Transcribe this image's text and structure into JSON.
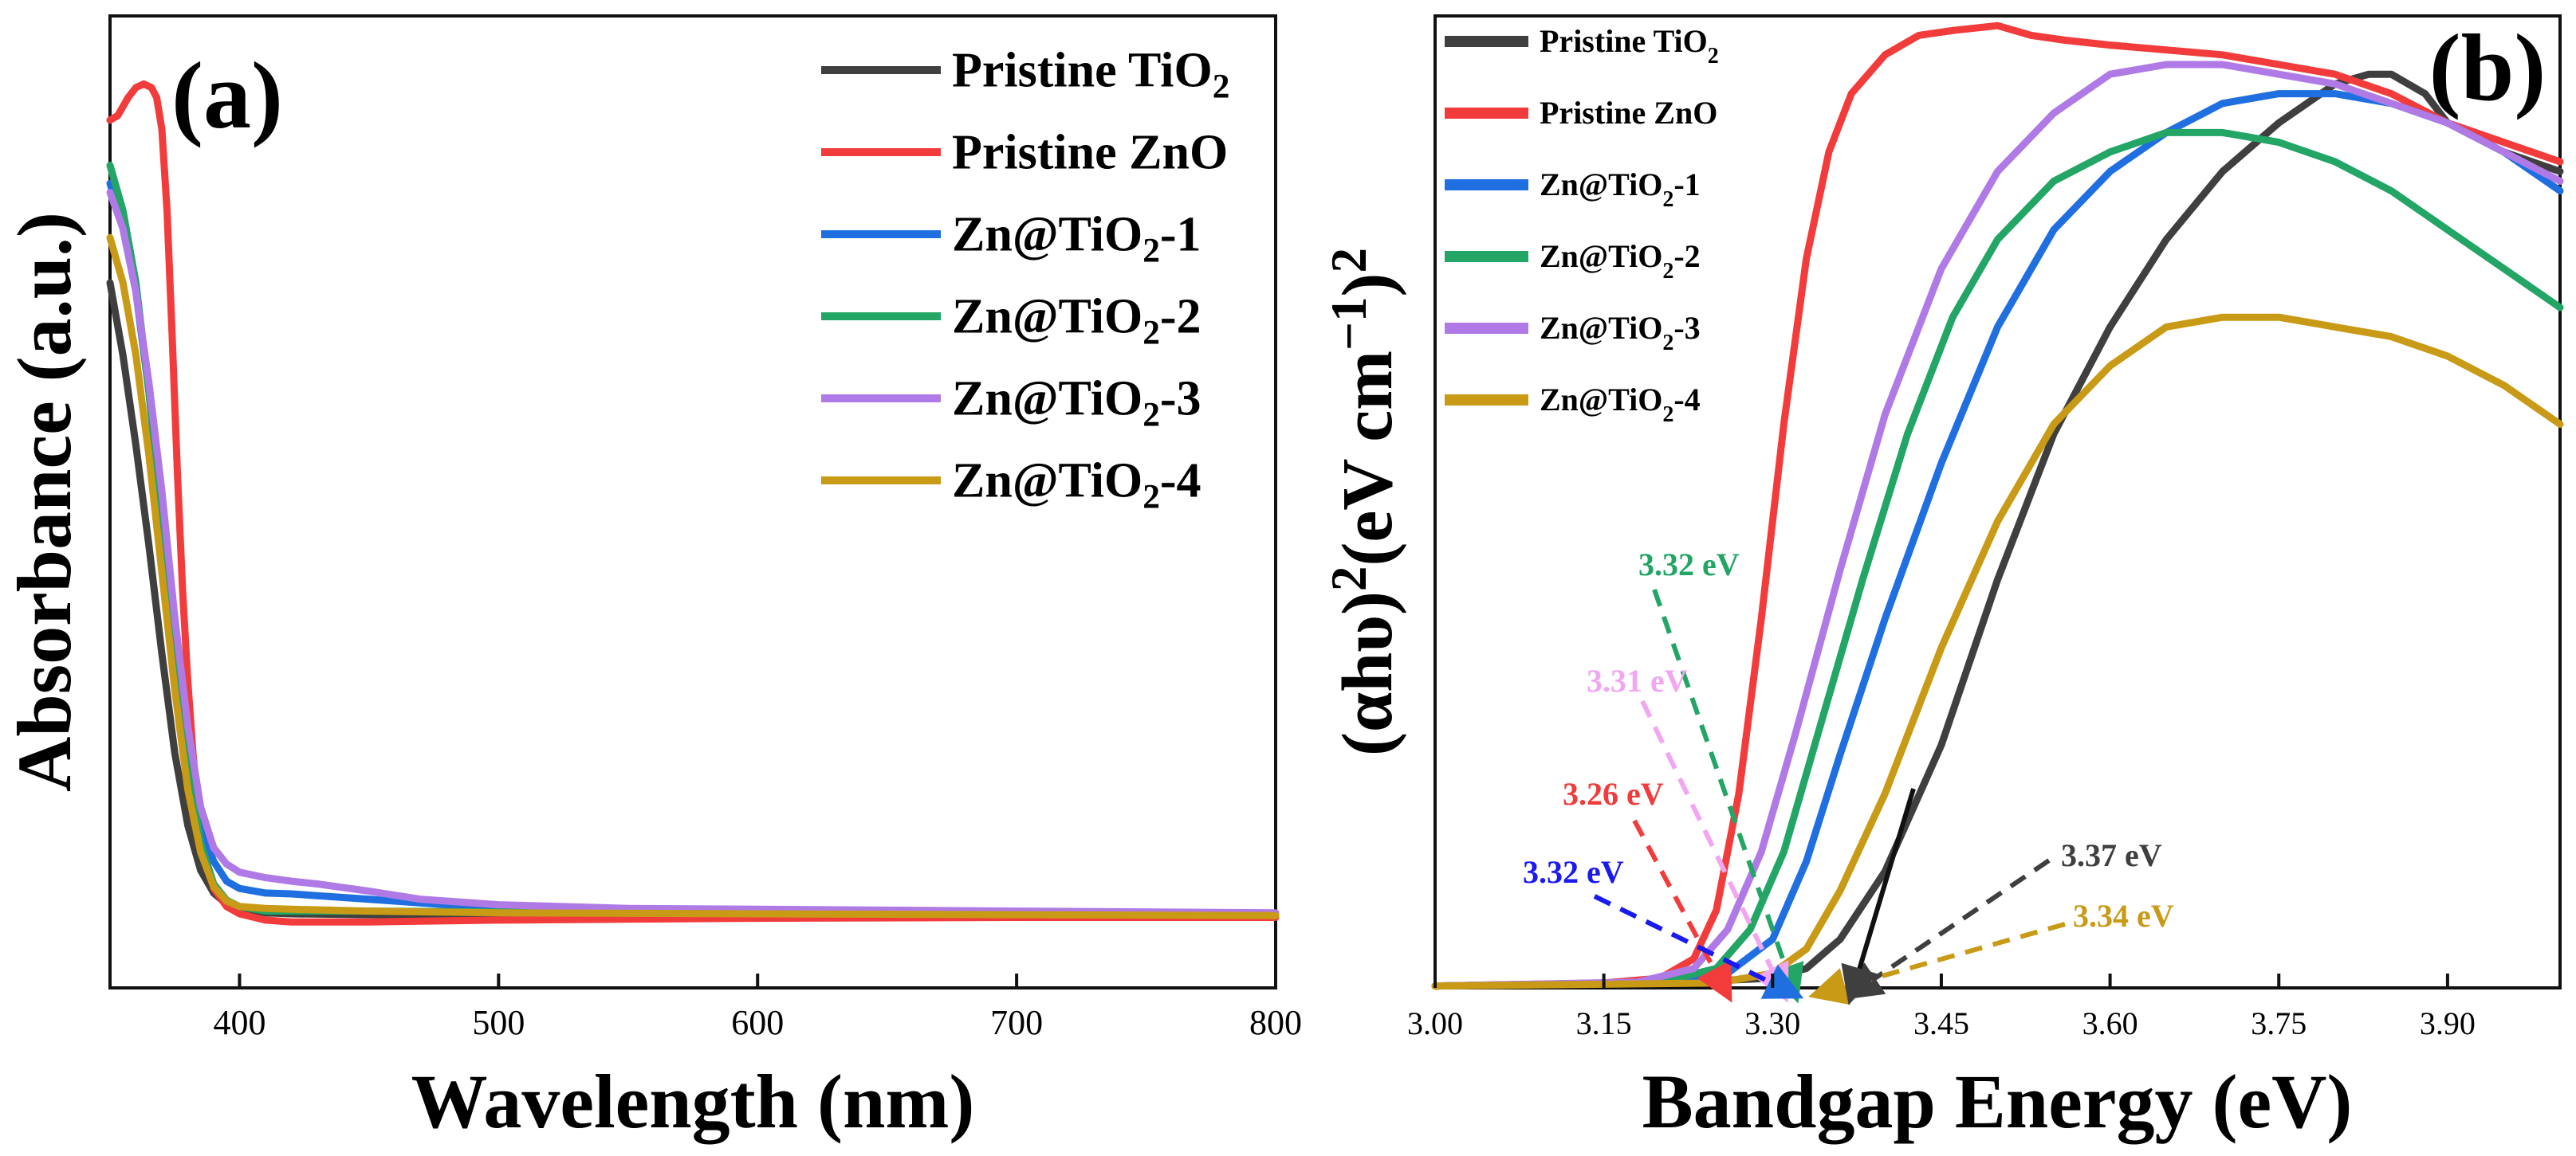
{
  "colors": {
    "pristine_tio2": "#3f3f3f",
    "pristine_zno": "#f23c3c",
    "zn_tio2_1": "#1f6fe0",
    "zn_tio2_2": "#22a565",
    "zn_tio2_3": "#b07ae6",
    "zn_tio2_4": "#c99a16"
  },
  "chart_data": [
    {
      "type": "line",
      "panel": "(a)",
      "title": "",
      "xlabel": "Wavelength (nm)",
      "ylabel": "Absorbance (a.u.)",
      "xlim": [
        350,
        800
      ],
      "ylim": [
        0,
        1.0
      ],
      "xticks": [
        400,
        500,
        600,
        700,
        800
      ],
      "grid": false,
      "legend_position": "top-right",
      "series": [
        {
          "key": "pristine_tio2",
          "name": "Pristine TiO",
          "sub": "2",
          "suffix": "",
          "x": [
            350,
            355,
            360,
            365,
            370,
            375,
            380,
            385,
            390,
            395,
            400,
            410,
            420,
            450,
            500,
            600,
            700,
            800
          ],
          "y": [
            0.78,
            0.7,
            0.6,
            0.49,
            0.37,
            0.26,
            0.18,
            0.13,
            0.105,
            0.093,
            0.088,
            0.083,
            0.082,
            0.081,
            0.081,
            0.081,
            0.081,
            0.08
          ]
        },
        {
          "key": "pristine_zno",
          "name": "Pristine ZnO",
          "sub": "",
          "suffix": "",
          "x": [
            350,
            353,
            357,
            360,
            363,
            366,
            368,
            370,
            372,
            374,
            376,
            378,
            380,
            382,
            384,
            386,
            388,
            390,
            395,
            400,
            410,
            420,
            450,
            500,
            600,
            700,
            800
          ],
          "y": [
            0.96,
            0.965,
            0.985,
            0.996,
            1.0,
            0.996,
            0.985,
            0.95,
            0.86,
            0.72,
            0.57,
            0.44,
            0.34,
            0.26,
            0.2,
            0.16,
            0.13,
            0.11,
            0.09,
            0.082,
            0.075,
            0.073,
            0.073,
            0.075,
            0.077,
            0.078,
            0.078
          ]
        },
        {
          "key": "zn_tio2_1",
          "name": "Zn@TiO",
          "sub": "2",
          "suffix": "-1",
          "x": [
            350,
            355,
            360,
            365,
            370,
            375,
            380,
            385,
            390,
            395,
            400,
            410,
            420,
            450,
            500,
            550,
            600,
            700,
            800
          ],
          "y": [
            0.89,
            0.84,
            0.77,
            0.66,
            0.52,
            0.38,
            0.26,
            0.18,
            0.14,
            0.118,
            0.11,
            0.105,
            0.104,
            0.098,
            0.088,
            0.085,
            0.084,
            0.082,
            0.081
          ]
        },
        {
          "key": "zn_tio2_2",
          "name": "Zn@TiO",
          "sub": "2",
          "suffix": "-2",
          "x": [
            350,
            355,
            360,
            365,
            370,
            375,
            380,
            385,
            390,
            395,
            400,
            410,
            420,
            450,
            500,
            600,
            700,
            800
          ],
          "y": [
            0.91,
            0.86,
            0.78,
            0.66,
            0.52,
            0.37,
            0.25,
            0.16,
            0.115,
            0.097,
            0.09,
            0.085,
            0.085,
            0.085,
            0.084,
            0.083,
            0.082,
            0.081
          ]
        },
        {
          "key": "zn_tio2_3",
          "name": "Zn@TiO",
          "sub": "2",
          "suffix": "-3",
          "x": [
            350,
            355,
            360,
            365,
            370,
            375,
            380,
            385,
            390,
            395,
            400,
            410,
            420,
            430,
            450,
            470,
            500,
            550,
            600,
            700,
            800
          ],
          "y": [
            0.88,
            0.84,
            0.77,
            0.67,
            0.55,
            0.41,
            0.29,
            0.2,
            0.155,
            0.137,
            0.128,
            0.122,
            0.118,
            0.115,
            0.107,
            0.098,
            0.092,
            0.088,
            0.087,
            0.085,
            0.083
          ]
        },
        {
          "key": "zn_tio2_4",
          "name": "Zn@TiO",
          "sub": "2",
          "suffix": "-4",
          "x": [
            350,
            355,
            360,
            365,
            370,
            375,
            380,
            385,
            390,
            395,
            400,
            410,
            420,
            450,
            500,
            600,
            700,
            800
          ],
          "y": [
            0.83,
            0.78,
            0.7,
            0.59,
            0.46,
            0.33,
            0.22,
            0.15,
            0.112,
            0.096,
            0.09,
            0.088,
            0.087,
            0.085,
            0.083,
            0.082,
            0.081,
            0.08
          ]
        }
      ]
    },
    {
      "type": "line",
      "panel": "(b)",
      "title": "",
      "xlabel": "Bandgap Energy (eV)",
      "ylabel_parts": [
        "(αhυ)",
        "2",
        "(eV cm",
        "−1",
        ")",
        "2"
      ],
      "xlim": [
        3.0,
        4.0
      ],
      "ylim": [
        0,
        1.0
      ],
      "xticks": [
        3.0,
        3.15,
        3.3,
        3.45,
        3.6,
        3.75,
        3.9
      ],
      "grid": false,
      "legend_position": "top-left",
      "series": [
        {
          "key": "pristine_tio2",
          "name": "Pristine TiO",
          "sub": "2",
          "suffix": "",
          "x": [
            3.0,
            3.2,
            3.3,
            3.33,
            3.36,
            3.4,
            3.45,
            3.5,
            3.55,
            3.6,
            3.65,
            3.7,
            3.75,
            3.8,
            3.83,
            3.85,
            3.88,
            3.9,
            3.95,
            4.0
          ],
          "y": [
            0.002,
            0.005,
            0.01,
            0.02,
            0.05,
            0.12,
            0.25,
            0.42,
            0.57,
            0.68,
            0.77,
            0.84,
            0.89,
            0.93,
            0.94,
            0.94,
            0.92,
            0.89,
            0.86,
            0.84
          ]
        },
        {
          "key": "pristine_zno",
          "name": "Pristine ZnO",
          "sub": "",
          "suffix": "",
          "x": [
            3.0,
            3.15,
            3.2,
            3.23,
            3.25,
            3.27,
            3.29,
            3.31,
            3.33,
            3.35,
            3.37,
            3.4,
            3.43,
            3.46,
            3.5,
            3.53,
            3.56,
            3.6,
            3.65,
            3.7,
            3.75,
            3.8,
            3.85,
            3.9,
            3.95,
            4.0
          ],
          "y": [
            0.002,
            0.005,
            0.01,
            0.03,
            0.08,
            0.2,
            0.38,
            0.58,
            0.75,
            0.86,
            0.92,
            0.96,
            0.98,
            0.985,
            0.99,
            0.98,
            0.975,
            0.97,
            0.965,
            0.96,
            0.95,
            0.94,
            0.92,
            0.89,
            0.87,
            0.85
          ]
        },
        {
          "key": "zn_tio2_1",
          "name": "Zn@TiO",
          "sub": "2",
          "suffix": "-1",
          "x": [
            3.0,
            3.2,
            3.26,
            3.3,
            3.33,
            3.36,
            3.4,
            3.45,
            3.5,
            3.55,
            3.6,
            3.65,
            3.7,
            3.75,
            3.8,
            3.85,
            3.9,
            3.95,
            4.0
          ],
          "y": [
            0.002,
            0.005,
            0.015,
            0.05,
            0.13,
            0.24,
            0.38,
            0.54,
            0.68,
            0.78,
            0.84,
            0.88,
            0.91,
            0.92,
            0.92,
            0.91,
            0.89,
            0.86,
            0.82
          ]
        },
        {
          "key": "zn_tio2_2",
          "name": "Zn@TiO",
          "sub": "2",
          "suffix": "-2",
          "x": [
            3.0,
            3.2,
            3.25,
            3.28,
            3.31,
            3.34,
            3.38,
            3.42,
            3.46,
            3.5,
            3.55,
            3.6,
            3.65,
            3.7,
            3.75,
            3.8,
            3.85,
            3.9,
            3.95,
            4.0
          ],
          "y": [
            0.002,
            0.006,
            0.02,
            0.06,
            0.14,
            0.26,
            0.42,
            0.57,
            0.69,
            0.77,
            0.83,
            0.86,
            0.88,
            0.88,
            0.87,
            0.85,
            0.82,
            0.78,
            0.74,
            0.7
          ]
        },
        {
          "key": "zn_tio2_3",
          "name": "Zn@TiO",
          "sub": "2",
          "suffix": "-3",
          "x": [
            3.0,
            3.18,
            3.23,
            3.26,
            3.29,
            3.32,
            3.36,
            3.4,
            3.45,
            3.5,
            3.55,
            3.6,
            3.65,
            3.7,
            3.75,
            3.8,
            3.85,
            3.9,
            3.95,
            4.0
          ],
          "y": [
            0.002,
            0.006,
            0.02,
            0.06,
            0.14,
            0.26,
            0.43,
            0.59,
            0.74,
            0.84,
            0.9,
            0.94,
            0.95,
            0.95,
            0.94,
            0.93,
            0.91,
            0.89,
            0.86,
            0.83
          ]
        },
        {
          "key": "zn_tio2_4",
          "name": "Zn@TiO",
          "sub": "2",
          "suffix": "-4",
          "x": [
            3.0,
            3.25,
            3.3,
            3.33,
            3.36,
            3.4,
            3.45,
            3.5,
            3.55,
            3.6,
            3.65,
            3.7,
            3.75,
            3.8,
            3.85,
            3.9,
            3.95,
            4.0
          ],
          "y": [
            0.002,
            0.005,
            0.015,
            0.04,
            0.1,
            0.2,
            0.35,
            0.48,
            0.58,
            0.64,
            0.68,
            0.69,
            0.69,
            0.68,
            0.67,
            0.65,
            0.62,
            0.58
          ]
        }
      ],
      "annotations": [
        {
          "label": "3.32 eV",
          "key": "zn_tio2_2",
          "target_x": 3.32
        },
        {
          "label": "3.31 eV",
          "key": "zn_tio2_3",
          "target_x": 3.31
        },
        {
          "label": "3.26 eV",
          "key": "pristine_zno",
          "target_x": 3.26
        },
        {
          "label": "3.32 eV",
          "key": "zn_tio2_1",
          "target_x": 3.32
        },
        {
          "label": "3.37 eV",
          "key": "pristine_tio2",
          "target_x": 3.37
        },
        {
          "label": "3.34 eV",
          "key": "zn_tio2_4",
          "target_x": 3.34
        }
      ]
    }
  ]
}
